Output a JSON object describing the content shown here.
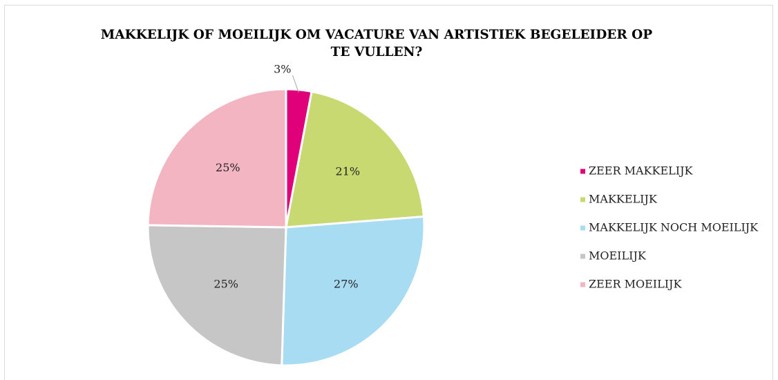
{
  "chart_data": {
    "type": "pie",
    "title": "MAKKELIJK OF MOEILIJK OM VACATURE VAN ARTISTIEK BEGELEIDER OP TE VULLEN?",
    "categories": [
      "ZEER MAKKELIJK",
      "MAKKELIJK",
      "MAKKELIJK NOCH MOEILIJK",
      "MOEILIJK",
      "ZEER MOEILIJK"
    ],
    "values": [
      3,
      21,
      27,
      25,
      25
    ],
    "value_labels": [
      "3%",
      "21%",
      "27%",
      "25%",
      "25%"
    ],
    "colors": [
      "#e0007a",
      "#c9d971",
      "#a8dcf3",
      "#c6c6c6",
      "#f4b5c3"
    ],
    "legend": "right"
  }
}
